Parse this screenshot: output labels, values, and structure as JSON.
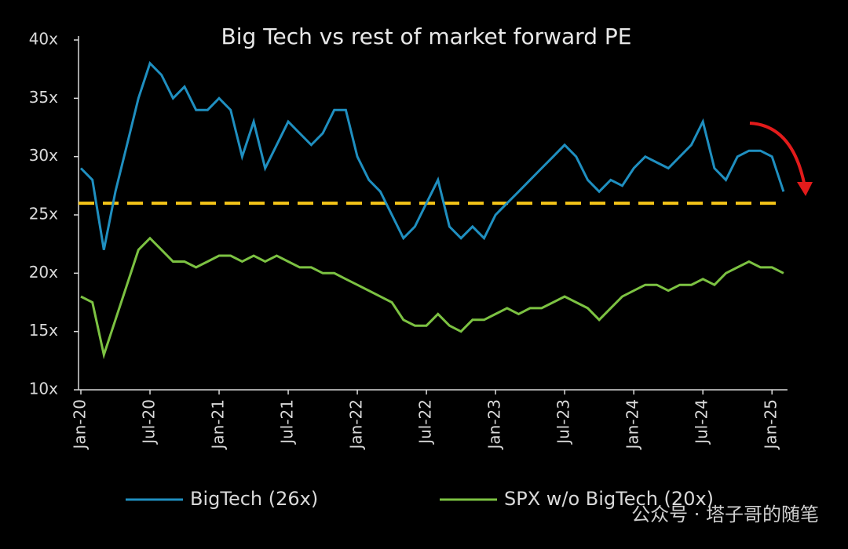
{
  "chart_data": {
    "type": "line",
    "title": "Big Tech vs rest of market forward PE",
    "x": [
      "Jan-20",
      "Feb-20",
      "Mar-20",
      "Apr-20",
      "May-20",
      "Jun-20",
      "Jul-20",
      "Aug-20",
      "Sep-20",
      "Oct-20",
      "Nov-20",
      "Dec-20",
      "Jan-21",
      "Feb-21",
      "Mar-21",
      "Apr-21",
      "May-21",
      "Jun-21",
      "Jul-21",
      "Aug-21",
      "Sep-21",
      "Oct-21",
      "Nov-21",
      "Dec-21",
      "Jan-22",
      "Feb-22",
      "Mar-22",
      "Apr-22",
      "May-22",
      "Jun-22",
      "Jul-22",
      "Aug-22",
      "Sep-22",
      "Oct-22",
      "Nov-22",
      "Dec-22",
      "Jan-23",
      "Feb-23",
      "Mar-23",
      "Apr-23",
      "May-23",
      "Jun-23",
      "Jul-23",
      "Aug-23",
      "Sep-23",
      "Oct-23",
      "Nov-23",
      "Dec-23",
      "Jan-24",
      "Feb-24",
      "Mar-24",
      "Apr-24",
      "May-24",
      "Jun-24",
      "Jul-24",
      "Aug-24",
      "Sep-24",
      "Oct-24",
      "Nov-24",
      "Dec-24",
      "Jan-25",
      "Feb-25"
    ],
    "series": [
      {
        "name": "BigTech (26x)",
        "color": "#1f8fc0",
        "values": [
          29,
          28,
          22,
          27,
          31,
          35,
          38,
          37,
          35,
          36,
          34,
          34,
          35,
          34,
          30,
          33,
          29,
          31,
          33,
          32,
          31,
          32,
          34,
          34,
          30,
          28,
          27,
          25,
          23,
          24,
          26,
          28,
          24,
          23,
          24,
          23,
          25,
          26,
          27,
          28,
          29,
          30,
          31,
          30,
          28,
          27,
          28,
          27.5,
          29,
          30,
          29.5,
          29,
          30,
          31,
          33,
          29,
          28,
          30,
          30.5,
          30.5,
          30,
          27
        ]
      },
      {
        "name": "SPX w/o BigTech (20x)",
        "color": "#7cc242",
        "values": [
          18,
          17.5,
          13,
          16,
          19,
          22,
          23,
          22,
          21,
          21,
          20.5,
          21,
          21.5,
          21.5,
          21,
          21.5,
          21,
          21.5,
          21,
          20.5,
          20.5,
          20,
          20,
          19.5,
          19,
          18.5,
          18,
          17.5,
          16,
          15.5,
          15.5,
          16.5,
          15.5,
          15,
          16,
          16,
          16.5,
          17,
          16.5,
          17,
          17,
          17.5,
          18,
          17.5,
          17,
          16,
          17,
          18,
          18.5,
          19,
          19,
          18.5,
          19,
          19,
          19.5,
          19,
          20,
          20.5,
          21,
          20.5,
          20.5,
          20
        ]
      }
    ],
    "reference_line": {
      "value": 26,
      "color": "#f5c518"
    },
    "ylim": [
      10,
      40
    ],
    "yticks": [
      {
        "value": 10,
        "label": "10x"
      },
      {
        "value": 15,
        "label": "15x"
      },
      {
        "value": 20,
        "label": "20x"
      },
      {
        "value": 25,
        "label": "25x"
      },
      {
        "value": 30,
        "label": "30x"
      },
      {
        "value": 35,
        "label": "35x"
      },
      {
        "value": 40,
        "label": "40x"
      }
    ],
    "xtick_every": 6,
    "watermark": "公众号 · 塔子哥的随笔"
  }
}
